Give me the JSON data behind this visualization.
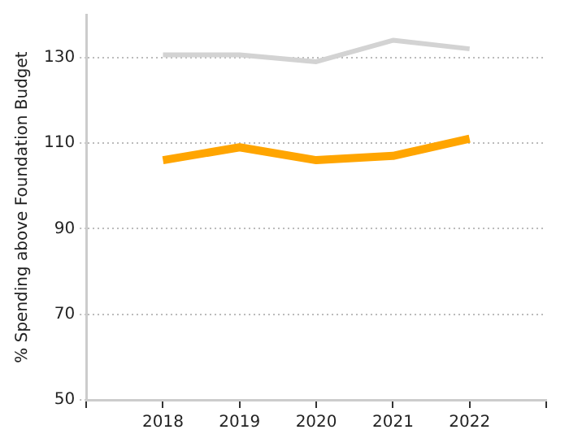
{
  "chart_data": {
    "type": "line",
    "ylabel": "% Spending above Foundation Budget",
    "x": [
      2018,
      2019,
      2020,
      2021,
      2022
    ],
    "series": [
      {
        "color": "#d3d3d3",
        "values": [
          130.6,
          130.6,
          129,
          134,
          132
        ]
      },
      {
        "color": "#ffa500",
        "values": [
          106,
          109,
          106,
          107,
          111
        ]
      }
    ],
    "xlim": [
      2017,
      2023
    ],
    "xticks": [
      {
        "value": 2017,
        "label": null
      },
      2018,
      2019,
      2020,
      2021,
      2022,
      {
        "value": 2023,
        "label": null
      }
    ],
    "ylim": [
      50,
      140
    ],
    "yticks": [
      50,
      70,
      90,
      110,
      130
    ],
    "grid": "y",
    "legend": false,
    "marker": "none",
    "line_style": "solid"
  }
}
